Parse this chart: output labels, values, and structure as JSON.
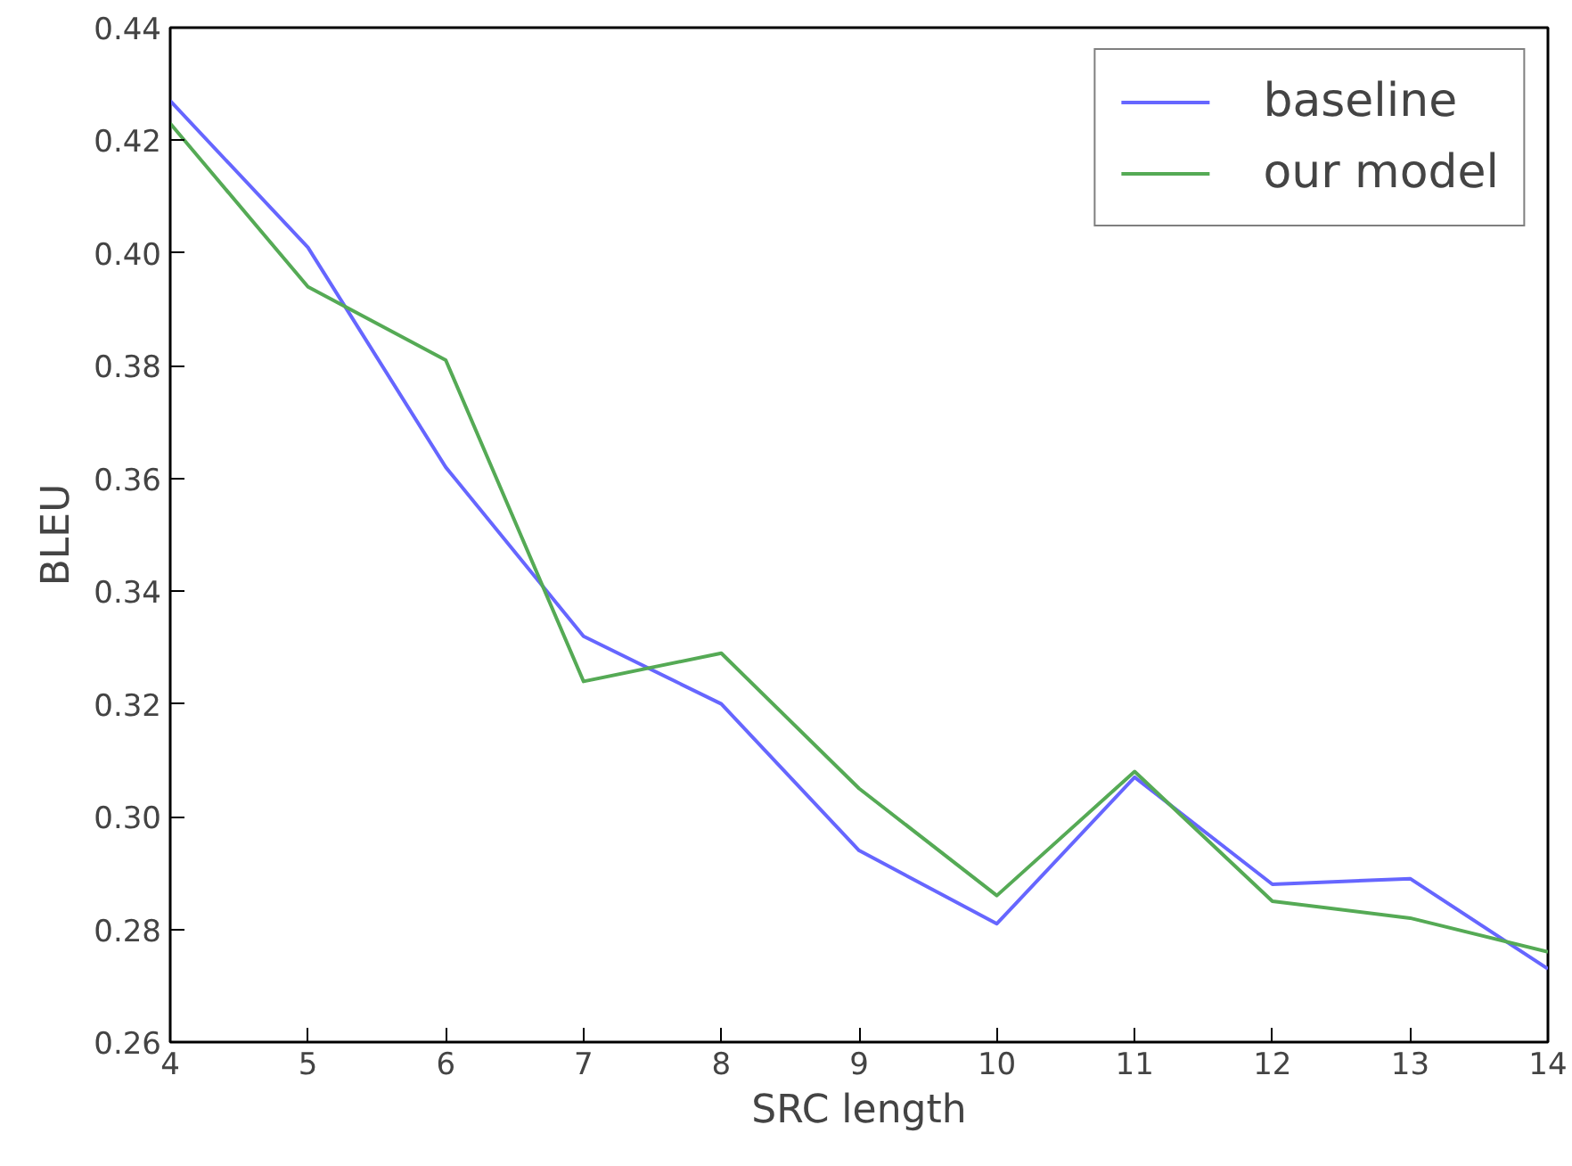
{
  "chart_data": {
    "type": "line",
    "xlabel": "SRC length",
    "ylabel": "BLEU",
    "x": [
      4,
      5,
      6,
      7,
      8,
      9,
      10,
      11,
      12,
      13,
      14
    ],
    "series": [
      {
        "name": "baseline",
        "color": "#6666ff",
        "values": [
          0.427,
          0.401,
          0.362,
          0.332,
          0.32,
          0.294,
          0.281,
          0.307,
          0.288,
          0.289,
          0.273
        ]
      },
      {
        "name": "our model",
        "color": "#55aa55",
        "values": [
          0.423,
          0.394,
          0.381,
          0.324,
          0.329,
          0.305,
          0.286,
          0.308,
          0.285,
          0.282,
          0.276
        ]
      }
    ],
    "xlim": [
      4,
      14
    ],
    "xticks": [
      4,
      5,
      6,
      7,
      8,
      9,
      10,
      11,
      12,
      13,
      14
    ],
    "ylim": [
      0.26,
      0.44
    ],
    "yticks": [
      {
        "value": 0.26,
        "label": "0.26"
      },
      {
        "value": 0.28,
        "label": "0.28"
      },
      {
        "value": 0.3,
        "label": "0.30"
      },
      {
        "value": 0.32,
        "label": "0.32"
      },
      {
        "value": 0.34,
        "label": "0.34"
      },
      {
        "value": 0.36,
        "label": "0.36"
      },
      {
        "value": 0.38,
        "label": "0.38"
      },
      {
        "value": 0.4,
        "label": "0.40"
      },
      {
        "value": 0.42,
        "label": "0.42"
      },
      {
        "value": 0.44,
        "label": "0.44"
      }
    ],
    "grid": false,
    "legend": "top right",
    "marker": "none",
    "line_style": "solid"
  }
}
